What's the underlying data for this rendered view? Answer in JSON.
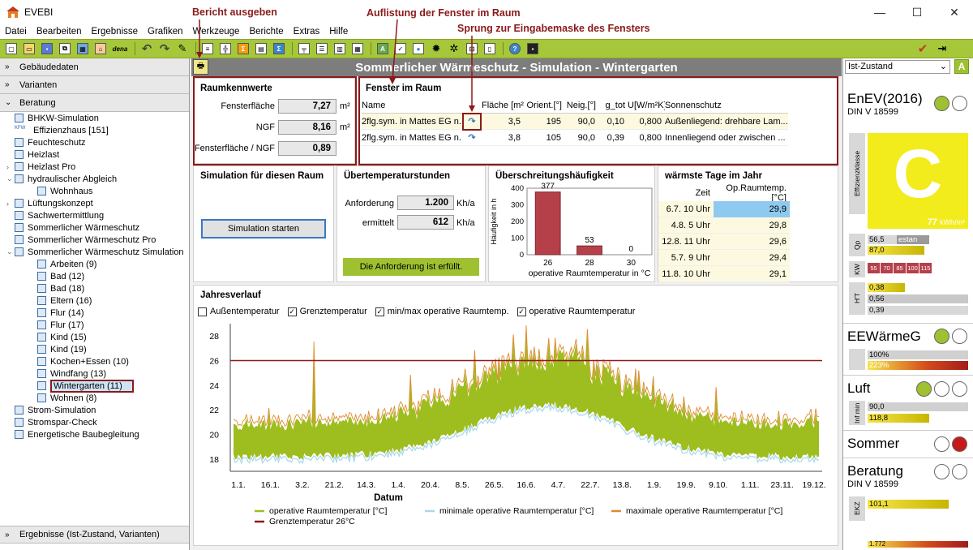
{
  "window": {
    "title": "EVEBI"
  },
  "menu": [
    "Datei",
    "Bearbeiten",
    "Ergebnisse",
    "Grafiken",
    "Werkzeuge",
    "Berichte",
    "Extras",
    "Hilfe"
  ],
  "toolbar": {
    "dena_label": "dena"
  },
  "left": {
    "acc_gebaeude": "Gebäudedaten",
    "acc_varianten": "Varianten",
    "acc_beratung": "Beratung",
    "acc_ergebnisse": "Ergebnisse (Ist-Zustand, Varianten)",
    "tree": [
      {
        "label": "BHKW-Simulation",
        "indent": 0,
        "exp": ""
      },
      {
        "label": "Effizienzhaus [151]",
        "indent": 0,
        "exp": "",
        "icon": "KFW"
      },
      {
        "label": "Feuchteschutz",
        "indent": 0,
        "exp": ""
      },
      {
        "label": "Heizlast",
        "indent": 0,
        "exp": ""
      },
      {
        "label": "Heizlast Pro",
        "indent": 0,
        "exp": ">"
      },
      {
        "label": "hydraulischer Abgleich",
        "indent": 0,
        "exp": "v"
      },
      {
        "label": "Wohnhaus",
        "indent": 1,
        "exp": ""
      },
      {
        "label": "Lüftungskonzept",
        "indent": 0,
        "exp": ">"
      },
      {
        "label": "Sachwertermittlung",
        "indent": 0,
        "exp": ""
      },
      {
        "label": "Sommerlicher Wärmeschutz",
        "indent": 0,
        "exp": ""
      },
      {
        "label": "Sommerlicher Wärmeschutz Pro",
        "indent": 0,
        "exp": ""
      },
      {
        "label": "Sommerlicher Wärmeschutz Simulation",
        "indent": 0,
        "exp": "v"
      },
      {
        "label": "Arbeiten (9)",
        "indent": 1,
        "exp": ""
      },
      {
        "label": "Bad (12)",
        "indent": 1,
        "exp": ""
      },
      {
        "label": "Bad (18)",
        "indent": 1,
        "exp": ""
      },
      {
        "label": "Eltern (16)",
        "indent": 1,
        "exp": ""
      },
      {
        "label": "Flur (14)",
        "indent": 1,
        "exp": ""
      },
      {
        "label": "Flur (17)",
        "indent": 1,
        "exp": ""
      },
      {
        "label": "Kind (15)",
        "indent": 1,
        "exp": ""
      },
      {
        "label": "Kind (19)",
        "indent": 1,
        "exp": ""
      },
      {
        "label": "Kochen+Essen (10)",
        "indent": 1,
        "exp": ""
      },
      {
        "label": "Windfang (13)",
        "indent": 1,
        "exp": ""
      },
      {
        "label": "Wintergarten (11)",
        "indent": 1,
        "exp": "",
        "selected": true
      },
      {
        "label": "Wohnen (8)",
        "indent": 1,
        "exp": ""
      },
      {
        "label": "Strom-Simulation",
        "indent": 0,
        "exp": ""
      },
      {
        "label": "Stromspar-Check",
        "indent": 0,
        "exp": ""
      },
      {
        "label": "Energetische Baubegleitung",
        "indent": 0,
        "exp": ""
      }
    ]
  },
  "main": {
    "header": "Sommerlicher Wärmeschutz - Simulation - Wintergarten",
    "raum": {
      "title": "Raumkennwerte",
      "fensterflaeche_label": "Fensterfläche",
      "fensterflaeche": "7,27",
      "fensterflaeche_unit": "m²",
      "ngf_label": "NGF",
      "ngf": "8,16",
      "ngf_unit": "m²",
      "ratio_label": "Fensterfläche / NGF",
      "ratio": "0,89"
    },
    "fenster": {
      "title": "Fenster im Raum",
      "headers": [
        "Name",
        "",
        "Fläche [m²]",
        "Orient.[°]",
        "Neig.[°]",
        "g_tot",
        "U[W/m²K]",
        "Sonnenschutz"
      ],
      "rows": [
        [
          "2flg.sym. in Mattes EG n...",
          "3,5",
          "195",
          "90,0",
          "0,10",
          "0,800",
          "Außenliegend: drehbare Lam..."
        ],
        [
          "2flg.sym. in Mattes EG n...",
          "3,8",
          "105",
          "90,0",
          "0,39",
          "0,800",
          "Innenliegend oder zwischen ..."
        ]
      ]
    },
    "simulation": {
      "title": "Simulation für diesen Raum",
      "button": "Simulation starten"
    },
    "ueber": {
      "title": "Übertemperaturstunden",
      "anf_label": "Anforderung",
      "anf": "1.200",
      "anf_unit": "Kh/a",
      "erm_label": "ermittelt",
      "erm": "612",
      "erm_unit": "Kh/a",
      "status": "Die Anforderung ist erfüllt."
    },
    "haeufigkeit": {
      "title": "Überschreitungshäufigkeit"
    },
    "warm": {
      "title": "wärmste Tage im Jahr",
      "col_zeit": "Zeit",
      "col_temp": "Op.Raumtemp.[°C]",
      "rows": [
        [
          "6.7. 10 Uhr",
          "29,9"
        ],
        [
          "4.8. 5 Uhr",
          "29,8"
        ],
        [
          "12.8. 11 Uhr",
          "29,6"
        ],
        [
          "5.7. 9 Uhr",
          "29,4"
        ],
        [
          "11.8. 10 Uhr",
          "29,1"
        ]
      ]
    },
    "jahres": {
      "title": "Jahresverlauf",
      "checks": [
        {
          "label": "Außentemperatur",
          "checked": false
        },
        {
          "label": "Grenztemperatur",
          "checked": true
        },
        {
          "label": "min/max operative Raumtemp.",
          "checked": true
        },
        {
          "label": "operative Raumtemperatur",
          "checked": true
        }
      ]
    }
  },
  "chart_data": [
    {
      "type": "bar",
      "title": "",
      "ylabel": "Häufigkeit in h",
      "xlabel": "operative Raumtemperatur in °C",
      "categories": [
        "26",
        "28",
        "30"
      ],
      "values": [
        377,
        53,
        0
      ],
      "ylim": [
        0,
        400
      ],
      "yticks": [
        0,
        100,
        200,
        300,
        400
      ],
      "color": "#b5404a"
    },
    {
      "type": "line",
      "title": "",
      "xlabel": "Datum",
      "ylabel": "",
      "x_ticks": [
        "1.1.",
        "16.1.",
        "3.2.",
        "21.2.",
        "14.3.",
        "1.4.",
        "20.4.",
        "8.5.",
        "26.5.",
        "16.6.",
        "4.7.",
        "22.7.",
        "13.8.",
        "1.9.",
        "19.9.",
        "9.10.",
        "1.11.",
        "23.11.",
        "19.12."
      ],
      "ylim": [
        17,
        29
      ],
      "yticks": [
        18,
        20,
        22,
        24,
        26,
        28
      ],
      "grenztemperatur": 26,
      "series": [
        {
          "name": "operative Raumtemperatur [°C]",
          "color": "#9ebd1e"
        },
        {
          "name": "minimale operative Raumtemperatur [°C]",
          "color": "#a9d8ec"
        },
        {
          "name": "maximale operative Raumtemperatur [°C]",
          "color": "#e08a2c"
        },
        {
          "name": "Grenztemperatur 26°C",
          "color": "#8b1a1a"
        }
      ]
    }
  ],
  "right": {
    "zustand": "Ist-Zustand",
    "enev_title": "EnEV(2016)",
    "enev_norm": "DIN V 18599",
    "effizienz_label": "Effizienzklasse",
    "klasse": "C",
    "klasse_value": "77",
    "klasse_unit": "kWh/m²",
    "qp_label": "Qp",
    "qp1": "56,5",
    "qp1_tag": "estan",
    "qp2": "87,0",
    "kw_label": "KW",
    "kw_values": [
      "55",
      "70",
      "85",
      "100",
      "115"
    ],
    "ht_label": "H'T",
    "ht1": "0,38",
    "ht2": "0,56",
    "ht3": "0,39",
    "ee_title": "EEWärmeG",
    "ee1": "100%",
    "ee2": "223%",
    "luft_title": "Luft",
    "luft_label": "Inf min",
    "luft1": "90,0",
    "luft2": "118,8",
    "sommer_title": "Sommer",
    "beratung_title": "Beratung",
    "beratung_norm": "DIN V 18599",
    "ekz_label": "EKZ",
    "ekz1": "101,1",
    "ekz2": "1.772"
  },
  "annotations": {
    "bericht": "Bericht ausgeben",
    "auflistung": "Auflistung der Fenster im Raum",
    "sprung": "Sprung zur Eingabemaske des Fensters"
  }
}
